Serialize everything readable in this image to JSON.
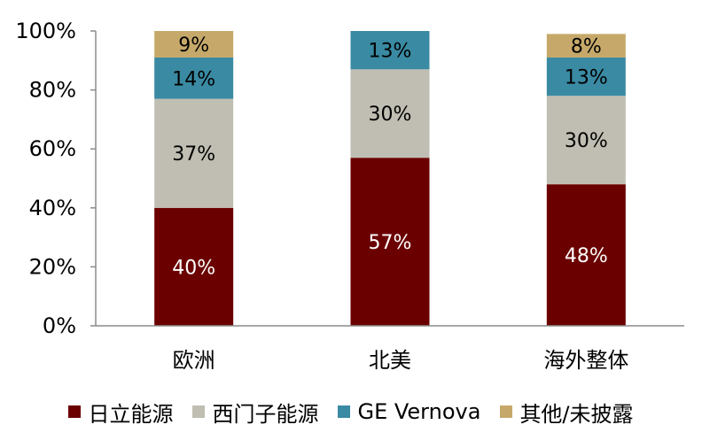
{
  "chart_data": {
    "type": "bar",
    "stacked": true,
    "categories": [
      "欧洲",
      "北美",
      "海外整体"
    ],
    "series": [
      {
        "name": "日立能源",
        "values": [
          40,
          57,
          48
        ],
        "color": "#6b0000",
        "labels": [
          "40%",
          "57%",
          "48%"
        ],
        "label_color": "#ffffff"
      },
      {
        "name": "西门子能源",
        "values": [
          37,
          30,
          30
        ],
        "color": "#c0beb2",
        "labels": [
          "37%",
          "30%",
          "30%"
        ],
        "label_color": "#000000"
      },
      {
        "name": "GE Vernova",
        "values": [
          14,
          13,
          13
        ],
        "color": "#3a8aa3",
        "labels": [
          "14%",
          "13%",
          "13%"
        ],
        "label_color": "#000000"
      },
      {
        "name": "其他/未披露",
        "values": [
          9,
          0,
          8
        ],
        "color": "#c6a96a",
        "labels": [
          "9%",
          "",
          "8%"
        ],
        "label_color": "#000000"
      }
    ],
    "yticks": [
      "0%",
      "20%",
      "40%",
      "60%",
      "80%",
      "100%"
    ],
    "ylim": [
      0,
      100
    ],
    "grid": false,
    "legend_position": "bottom"
  }
}
